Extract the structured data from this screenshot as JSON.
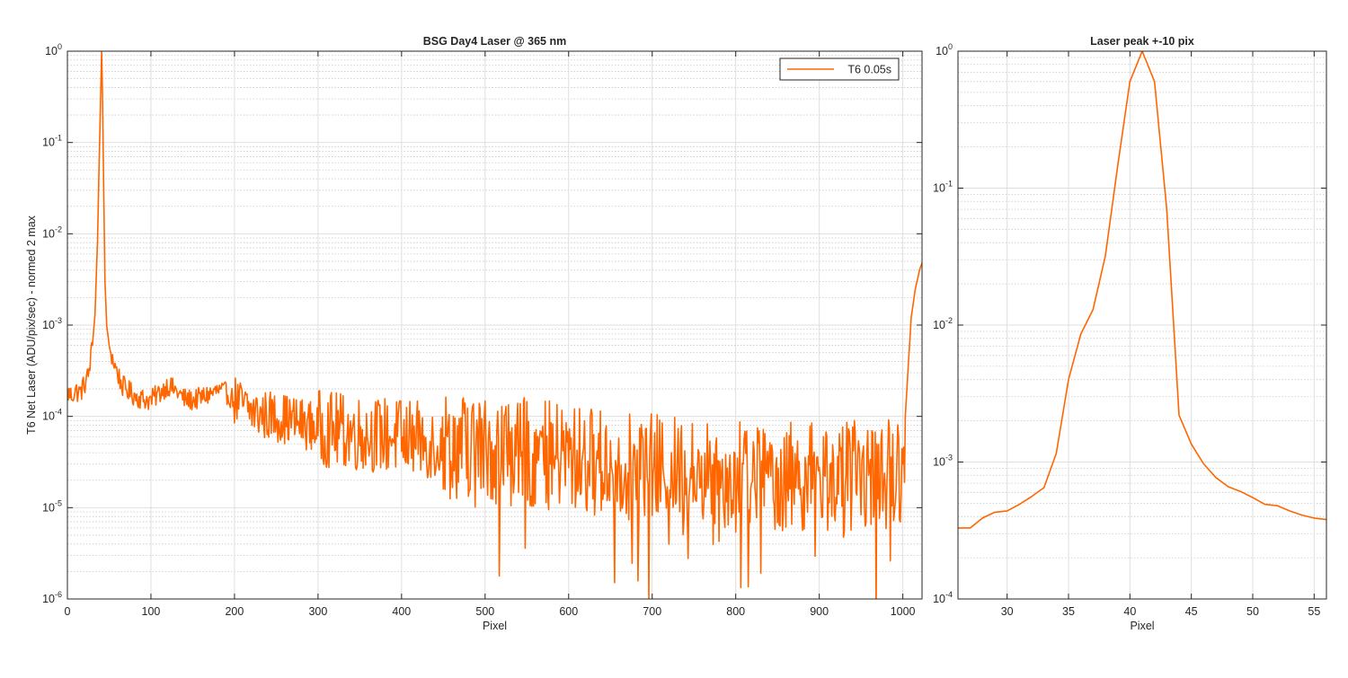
{
  "colors": {
    "series": "#FF6600",
    "axis": "#262626",
    "grid_major": "#DFDFDF",
    "grid_minor": "#C8C8C8"
  },
  "chart_data": [
    {
      "type": "line",
      "title": "BSG  Day4 Laser @ 365 nm",
      "xlabel": "Pixel",
      "ylabel": "T6 Net Laser (ADU/pix/sec) - normed 2 max",
      "xlim": [
        0,
        1023
      ],
      "ylim": [
        1e-06,
        1
      ],
      "yscale": "log",
      "grid": true,
      "legend": "top-right",
      "xticks": [
        "0",
        "100",
        "200",
        "300",
        "400",
        "500",
        "600",
        "700",
        "800",
        "900",
        "1000"
      ],
      "yticks": [
        {
          "base": "10",
          "exp": "0"
        },
        {
          "base": "10",
          "exp": "-1"
        },
        {
          "base": "10",
          "exp": "-2"
        },
        {
          "base": "10",
          "exp": "-3"
        },
        {
          "base": "10",
          "exp": "-4"
        },
        {
          "base": "10",
          "exp": "-5"
        },
        {
          "base": "10",
          "exp": "-6"
        }
      ],
      "series": [
        {
          "name": "T6 0.05s",
          "envelope": [
            [
              0,
              0.00018
            ],
            [
              5,
              0.00017
            ],
            [
              10,
              0.00019
            ],
            [
              15,
              0.00018
            ],
            [
              20,
              0.00022
            ],
            [
              25,
              0.00028
            ],
            [
              30,
              0.0006
            ],
            [
              33,
              0.0013
            ],
            [
              36,
              0.008
            ],
            [
              38,
              0.06
            ],
            [
              40,
              0.4
            ],
            [
              41,
              1.0
            ],
            [
              42,
              0.35
            ],
            [
              43,
              0.06
            ],
            [
              45,
              0.003
            ],
            [
              47,
              0.001
            ],
            [
              50,
              0.0006
            ],
            [
              55,
              0.0004
            ],
            [
              60,
              0.0003
            ],
            [
              65,
              0.00022
            ],
            [
              70,
              0.0002
            ],
            [
              80,
              0.00017
            ],
            [
              90,
              0.000155
            ],
            [
              100,
              0.00015
            ],
            [
              110,
              0.00018
            ],
            [
              120,
              0.00022
            ],
            [
              130,
              0.00019
            ],
            [
              140,
              0.000155
            ],
            [
              150,
              0.00015
            ],
            [
              160,
              0.00016
            ],
            [
              170,
              0.000175
            ],
            [
              180,
              0.00019
            ],
            [
              190,
              0.00018
            ],
            [
              200,
              0.00015
            ],
            [
              210,
              0.00013
            ],
            [
              220,
              0.000115
            ],
            [
              230,
              0.000105
            ],
            [
              250,
              0.0001
            ],
            [
              280,
              8.5e-05
            ],
            [
              300,
              7.5e-05
            ],
            [
              350,
              6.5e-05
            ],
            [
              400,
              6e-05
            ],
            [
              450,
              5e-05
            ],
            [
              500,
              4.5e-05
            ],
            [
              550,
              4e-05
            ],
            [
              600,
              3.5e-05
            ],
            [
              650,
              3e-05
            ],
            [
              700,
              2.7e-05
            ],
            [
              750,
              2.5e-05
            ],
            [
              800,
              2.3e-05
            ],
            [
              850,
              2.2e-05
            ],
            [
              900,
              2.2e-05
            ],
            [
              950,
              2.3e-05
            ],
            [
              990,
              2.3e-05
            ],
            [
              1000,
              3e-05
            ],
            [
              1003,
              0.0001
            ],
            [
              1006,
              0.0003
            ],
            [
              1010,
              0.0012
            ],
            [
              1015,
              0.0025
            ],
            [
              1020,
              0.004
            ],
            [
              1023,
              0.0048
            ]
          ]
        }
      ]
    },
    {
      "type": "line",
      "title": "Laser peak +-10 pix",
      "xlabel": "Pixel",
      "ylabel": "",
      "xlim": [
        26,
        56
      ],
      "ylim": [
        0.0001,
        1
      ],
      "yscale": "log",
      "grid": true,
      "xticks": [
        "30",
        "35",
        "40",
        "45",
        "50",
        "55"
      ],
      "yticks": [
        {
          "base": "10",
          "exp": "0"
        },
        {
          "base": "10",
          "exp": "-1"
        },
        {
          "base": "10",
          "exp": "-2"
        },
        {
          "base": "10",
          "exp": "-3"
        },
        {
          "base": "10",
          "exp": "-4"
        }
      ],
      "series": [
        {
          "x": [
            26,
            27,
            28,
            29,
            30,
            31,
            32,
            33,
            34,
            35,
            36,
            37,
            38,
            39,
            40,
            41,
            42,
            43,
            44,
            45,
            46,
            47,
            48,
            49,
            50,
            51,
            52,
            53,
            54,
            55,
            56
          ],
          "y": [
            0.00033,
            0.00033,
            0.00039,
            0.00043,
            0.00044,
            0.00049,
            0.00056,
            0.00065,
            0.00115,
            0.004,
            0.0086,
            0.013,
            0.032,
            0.145,
            0.6,
            1.0,
            0.6,
            0.07,
            0.0022,
            0.00135,
            0.00097,
            0.00077,
            0.00066,
            0.00061,
            0.00055,
            0.00049,
            0.00048,
            0.00044,
            0.00041,
            0.00039,
            0.00038
          ]
        }
      ]
    }
  ]
}
